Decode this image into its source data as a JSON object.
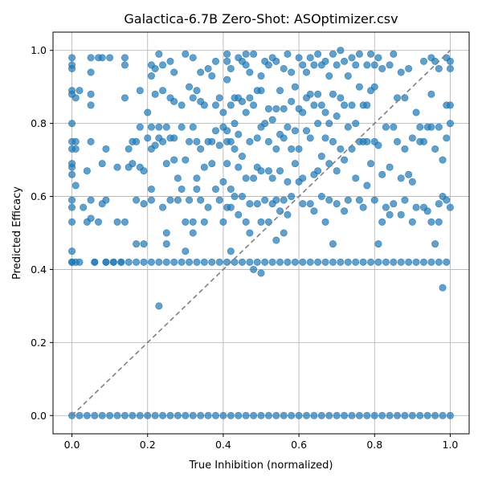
{
  "chart_data": {
    "type": "scatter",
    "title": "Galactica-6.7B Zero-Shot: ASOptimizer.csv",
    "xlabel": "True Inhibition (normalized)",
    "ylabel": "Predicted Efficacy",
    "xlim": [
      -0.05,
      1.05
    ],
    "ylim": [
      -0.05,
      1.05
    ],
    "xticks": [
      "0.0",
      "0.2",
      "0.4",
      "0.6",
      "0.8",
      "1.0"
    ],
    "yticks": [
      "0.0",
      "0.2",
      "0.4",
      "0.6",
      "0.8",
      "1.0"
    ],
    "grid": true,
    "legend": "none",
    "point_color": "#1f77b4",
    "point_alpha": 0.7,
    "reference_line": {
      "style": "dashed",
      "color": "#808080",
      "from": [
        0,
        0
      ],
      "to": [
        1,
        1
      ]
    },
    "points": [
      [
        0.0,
        0.98
      ],
      [
        0.0,
        0.96
      ],
      [
        0.0,
        0.95
      ],
      [
        0.0,
        0.89
      ],
      [
        0.0,
        0.88
      ],
      [
        0.0,
        0.8
      ],
      [
        0.0,
        0.75
      ],
      [
        0.0,
        0.73
      ],
      [
        0.0,
        0.69
      ],
      [
        0.0,
        0.68
      ],
      [
        0.0,
        0.66
      ],
      [
        0.0,
        0.59
      ],
      [
        0.0,
        0.57
      ],
      [
        0.0,
        0.53
      ],
      [
        0.0,
        0.45
      ],
      [
        0.0,
        0.42
      ],
      [
        0.01,
        0.87
      ],
      [
        0.01,
        0.75
      ],
      [
        0.01,
        0.73
      ],
      [
        0.01,
        0.63
      ],
      [
        0.02,
        0.89
      ],
      [
        0.02,
        0.42
      ],
      [
        0.03,
        0.57
      ],
      [
        0.04,
        0.67
      ],
      [
        0.04,
        0.53
      ],
      [
        0.05,
        0.98
      ],
      [
        0.05,
        0.94
      ],
      [
        0.05,
        0.88
      ],
      [
        0.05,
        0.85
      ],
      [
        0.05,
        0.75
      ],
      [
        0.05,
        0.59
      ],
      [
        0.05,
        0.54
      ],
      [
        0.06,
        0.42
      ],
      [
        0.07,
        0.98
      ],
      [
        0.07,
        0.53
      ],
      [
        0.08,
        0.98
      ],
      [
        0.08,
        0.69
      ],
      [
        0.08,
        0.58
      ],
      [
        0.09,
        0.73
      ],
      [
        0.09,
        0.59
      ],
      [
        0.09,
        0.42
      ],
      [
        0.1,
        0.98
      ],
      [
        0.11,
        0.42
      ],
      [
        0.12,
        0.68
      ],
      [
        0.12,
        0.53
      ],
      [
        0.13,
        0.42
      ],
      [
        0.14,
        0.53
      ],
      [
        0.14,
        0.98
      ],
      [
        0.14,
        0.96
      ],
      [
        0.14,
        0.87
      ],
      [
        0.15,
        0.73
      ],
      [
        0.15,
        0.68
      ],
      [
        0.16,
        0.75
      ],
      [
        0.16,
        0.69
      ],
      [
        0.17,
        0.75
      ],
      [
        0.17,
        0.59
      ],
      [
        0.17,
        0.47
      ],
      [
        0.18,
        0.89
      ],
      [
        0.18,
        0.79
      ],
      [
        0.18,
        0.68
      ],
      [
        0.19,
        0.67
      ],
      [
        0.19,
        0.58
      ],
      [
        0.19,
        0.47
      ],
      [
        0.2,
        0.83
      ],
      [
        0.2,
        0.76
      ],
      [
        0.21,
        0.96
      ],
      [
        0.21,
        0.93
      ],
      [
        0.21,
        0.79
      ],
      [
        0.21,
        0.73
      ],
      [
        0.21,
        0.62
      ],
      [
        0.21,
        0.59
      ],
      [
        0.22,
        0.95
      ],
      [
        0.22,
        0.88
      ],
      [
        0.22,
        0.74
      ],
      [
        0.23,
        0.99
      ],
      [
        0.23,
        0.79
      ],
      [
        0.23,
        0.76
      ],
      [
        0.23,
        0.3
      ],
      [
        0.24,
        0.96
      ],
      [
        0.24,
        0.89
      ],
      [
        0.24,
        0.75
      ],
      [
        0.24,
        0.57
      ],
      [
        0.25,
        0.79
      ],
      [
        0.25,
        0.69
      ],
      [
        0.25,
        0.5
      ],
      [
        0.25,
        0.47
      ],
      [
        0.26,
        0.97
      ],
      [
        0.26,
        0.87
      ],
      [
        0.26,
        0.76
      ],
      [
        0.26,
        0.59
      ],
      [
        0.27,
        0.94
      ],
      [
        0.27,
        0.86
      ],
      [
        0.27,
        0.76
      ],
      [
        0.27,
        0.7
      ],
      [
        0.28,
        0.65
      ],
      [
        0.28,
        0.59
      ],
      [
        0.29,
        0.85
      ],
      [
        0.29,
        0.79
      ],
      [
        0.29,
        0.62
      ],
      [
        0.3,
        0.99
      ],
      [
        0.3,
        0.7
      ],
      [
        0.3,
        0.53
      ],
      [
        0.3,
        0.45
      ],
      [
        0.31,
        0.9
      ],
      [
        0.31,
        0.75
      ],
      [
        0.31,
        0.59
      ],
      [
        0.32,
        0.98
      ],
      [
        0.32,
        0.87
      ],
      [
        0.32,
        0.79
      ],
      [
        0.32,
        0.53
      ],
      [
        0.32,
        0.5
      ],
      [
        0.33,
        0.89
      ],
      [
        0.33,
        0.75
      ],
      [
        0.33,
        0.65
      ],
      [
        0.33,
        0.62
      ],
      [
        0.34,
        0.94
      ],
      [
        0.34,
        0.86
      ],
      [
        0.34,
        0.73
      ],
      [
        0.34,
        0.59
      ],
      [
        0.35,
        0.85
      ],
      [
        0.35,
        0.68
      ],
      [
        0.35,
        0.53
      ],
      [
        0.36,
        0.95
      ],
      [
        0.36,
        0.75
      ],
      [
        0.36,
        0.57
      ],
      [
        0.37,
        0.93
      ],
      [
        0.37,
        0.75
      ],
      [
        0.37,
        0.69
      ],
      [
        0.38,
        0.97
      ],
      [
        0.38,
        0.85
      ],
      [
        0.38,
        0.78
      ],
      [
        0.38,
        0.62
      ],
      [
        0.39,
        0.87
      ],
      [
        0.39,
        0.74
      ],
      [
        0.39,
        0.59
      ],
      [
        0.4,
        0.83
      ],
      [
        0.4,
        0.79
      ],
      [
        0.4,
        0.64
      ],
      [
        0.4,
        0.53
      ],
      [
        0.41,
        0.99
      ],
      [
        0.41,
        0.97
      ],
      [
        0.41,
        0.92
      ],
      [
        0.41,
        0.78
      ],
      [
        0.41,
        0.75
      ],
      [
        0.41,
        0.69
      ],
      [
        0.41,
        0.57
      ],
      [
        0.42,
        0.95
      ],
      [
        0.42,
        0.85
      ],
      [
        0.42,
        0.75
      ],
      [
        0.42,
        0.62
      ],
      [
        0.42,
        0.57
      ],
      [
        0.42,
        0.45
      ],
      [
        0.43,
        0.87
      ],
      [
        0.43,
        0.8
      ],
      [
        0.43,
        0.73
      ],
      [
        0.43,
        0.6
      ],
      [
        0.44,
        0.98
      ],
      [
        0.44,
        0.87
      ],
      [
        0.44,
        0.77
      ],
      [
        0.44,
        0.68
      ],
      [
        0.44,
        0.55
      ],
      [
        0.45,
        0.97
      ],
      [
        0.45,
        0.86
      ],
      [
        0.45,
        0.71
      ],
      [
        0.45,
        0.6
      ],
      [
        0.46,
        0.99
      ],
      [
        0.46,
        0.96
      ],
      [
        0.46,
        0.83
      ],
      [
        0.46,
        0.65
      ],
      [
        0.46,
        0.53
      ],
      [
        0.47,
        0.94
      ],
      [
        0.47,
        0.87
      ],
      [
        0.47,
        0.75
      ],
      [
        0.47,
        0.58
      ],
      [
        0.47,
        0.5
      ],
      [
        0.48,
        0.99
      ],
      [
        0.48,
        0.85
      ],
      [
        0.48,
        0.65
      ],
      [
        0.48,
        0.4
      ],
      [
        0.49,
        0.89
      ],
      [
        0.49,
        0.76
      ],
      [
        0.49,
        0.68
      ],
      [
        0.49,
        0.58
      ],
      [
        0.5,
        0.93
      ],
      [
        0.5,
        0.89
      ],
      [
        0.5,
        0.79
      ],
      [
        0.5,
        0.67
      ],
      [
        0.5,
        0.53
      ],
      [
        0.5,
        0.39
      ],
      [
        0.51,
        0.97
      ],
      [
        0.51,
        0.8
      ],
      [
        0.51,
        0.59
      ],
      [
        0.52,
        0.96
      ],
      [
        0.52,
        0.84
      ],
      [
        0.52,
        0.75
      ],
      [
        0.52,
        0.67
      ],
      [
        0.52,
        0.53
      ],
      [
        0.53,
        0.98
      ],
      [
        0.53,
        0.81
      ],
      [
        0.53,
        0.65
      ],
      [
        0.53,
        0.58
      ],
      [
        0.54,
        0.97
      ],
      [
        0.54,
        0.84
      ],
      [
        0.54,
        0.73
      ],
      [
        0.54,
        0.59
      ],
      [
        0.54,
        0.48
      ],
      [
        0.55,
        0.89
      ],
      [
        0.55,
        0.77
      ],
      [
        0.55,
        0.67
      ],
      [
        0.55,
        0.56
      ],
      [
        0.56,
        0.95
      ],
      [
        0.56,
        0.84
      ],
      [
        0.56,
        0.76
      ],
      [
        0.56,
        0.59
      ],
      [
        0.56,
        0.5
      ],
      [
        0.57,
        0.99
      ],
      [
        0.57,
        0.79
      ],
      [
        0.57,
        0.64
      ],
      [
        0.57,
        0.55
      ],
      [
        0.58,
        0.94
      ],
      [
        0.58,
        0.86
      ],
      [
        0.58,
        0.73
      ],
      [
        0.58,
        0.6
      ],
      [
        0.59,
        0.9
      ],
      [
        0.59,
        0.78
      ],
      [
        0.59,
        0.69
      ],
      [
        0.6,
        0.98
      ],
      [
        0.6,
        0.84
      ],
      [
        0.6,
        0.73
      ],
      [
        0.6,
        0.64
      ],
      [
        0.61,
        0.96
      ],
      [
        0.61,
        0.83
      ],
      [
        0.61,
        0.65
      ],
      [
        0.61,
        0.58
      ],
      [
        0.62,
        0.94
      ],
      [
        0.62,
        0.87
      ],
      [
        0.62,
        0.78
      ],
      [
        0.63,
        0.98
      ],
      [
        0.63,
        0.88
      ],
      [
        0.63,
        0.76
      ],
      [
        0.63,
        0.58
      ],
      [
        0.64,
        0.96
      ],
      [
        0.64,
        0.85
      ],
      [
        0.64,
        0.66
      ],
      [
        0.64,
        0.56
      ],
      [
        0.65,
        0.99
      ],
      [
        0.65,
        0.88
      ],
      [
        0.65,
        0.8
      ],
      [
        0.65,
        0.67
      ],
      [
        0.66,
        0.96
      ],
      [
        0.66,
        0.85
      ],
      [
        0.66,
        0.71
      ],
      [
        0.66,
        0.6
      ],
      [
        0.67,
        0.97
      ],
      [
        0.67,
        0.83
      ],
      [
        0.67,
        0.76
      ],
      [
        0.67,
        0.53
      ],
      [
        0.68,
        0.93
      ],
      [
        0.68,
        0.8
      ],
      [
        0.68,
        0.69
      ],
      [
        0.68,
        0.59
      ],
      [
        0.69,
        0.99
      ],
      [
        0.69,
        0.88
      ],
      [
        0.69,
        0.75
      ],
      [
        0.69,
        0.47
      ],
      [
        0.7,
        0.96
      ],
      [
        0.7,
        0.82
      ],
      [
        0.7,
        0.67
      ],
      [
        0.7,
        0.58
      ],
      [
        0.71,
        1.0
      ],
      [
        0.71,
        0.87
      ],
      [
        0.71,
        0.73
      ],
      [
        0.72,
        0.97
      ],
      [
        0.72,
        0.85
      ],
      [
        0.72,
        0.7
      ],
      [
        0.72,
        0.56
      ],
      [
        0.73,
        0.93
      ],
      [
        0.73,
        0.79
      ],
      [
        0.73,
        0.59
      ],
      [
        0.74,
        0.98
      ],
      [
        0.74,
        0.85
      ],
      [
        0.74,
        0.73
      ],
      [
        0.75,
        0.96
      ],
      [
        0.75,
        0.8
      ],
      [
        0.75,
        0.65
      ],
      [
        0.76,
        0.99
      ],
      [
        0.76,
        0.9
      ],
      [
        0.76,
        0.75
      ],
      [
        0.76,
        0.59
      ],
      [
        0.77,
        0.85
      ],
      [
        0.77,
        0.75
      ],
      [
        0.77,
        0.57
      ],
      [
        0.78,
        0.96
      ],
      [
        0.78,
        0.85
      ],
      [
        0.78,
        0.75
      ],
      [
        0.78,
        0.63
      ],
      [
        0.79,
        0.99
      ],
      [
        0.79,
        0.89
      ],
      [
        0.79,
        0.69
      ],
      [
        0.8,
        0.96
      ],
      [
        0.8,
        0.9
      ],
      [
        0.8,
        0.75
      ],
      [
        0.8,
        0.59
      ],
      [
        0.81,
        0.98
      ],
      [
        0.81,
        0.74
      ],
      [
        0.81,
        0.47
      ],
      [
        0.82,
        0.95
      ],
      [
        0.82,
        0.66
      ],
      [
        0.82,
        0.53
      ],
      [
        0.83,
        0.79
      ],
      [
        0.83,
        0.57
      ],
      [
        0.84,
        0.96
      ],
      [
        0.84,
        0.68
      ],
      [
        0.84,
        0.55
      ],
      [
        0.85,
        0.99
      ],
      [
        0.85,
        0.79
      ],
      [
        0.85,
        0.58
      ],
      [
        0.86,
        0.87
      ],
      [
        0.86,
        0.75
      ],
      [
        0.87,
        0.94
      ],
      [
        0.87,
        0.65
      ],
      [
        0.87,
        0.55
      ],
      [
        0.88,
        0.87
      ],
      [
        0.88,
        0.73
      ],
      [
        0.88,
        0.59
      ],
      [
        0.89,
        0.95
      ],
      [
        0.89,
        0.66
      ],
      [
        0.9,
        0.76
      ],
      [
        0.9,
        0.64
      ],
      [
        0.9,
        0.53
      ],
      [
        0.91,
        0.83
      ],
      [
        0.91,
        0.57
      ],
      [
        0.92,
        0.79
      ],
      [
        0.92,
        0.75
      ],
      [
        0.93,
        0.97
      ],
      [
        0.93,
        0.75
      ],
      [
        0.93,
        0.57
      ],
      [
        0.94,
        0.79
      ],
      [
        0.94,
        0.56
      ],
      [
        0.95,
        0.98
      ],
      [
        0.95,
        0.88
      ],
      [
        0.95,
        0.79
      ],
      [
        0.95,
        0.53
      ],
      [
        0.96,
        0.97
      ],
      [
        0.96,
        0.73
      ],
      [
        0.96,
        0.47
      ],
      [
        0.97,
        0.95
      ],
      [
        0.97,
        0.79
      ],
      [
        0.97,
        0.58
      ],
      [
        0.97,
        0.53
      ],
      [
        0.98,
        0.7
      ],
      [
        0.98,
        0.6
      ],
      [
        0.98,
        0.35
      ],
      [
        0.99,
        0.98
      ],
      [
        0.99,
        0.85
      ],
      [
        0.99,
        0.76
      ],
      [
        0.99,
        0.59
      ],
      [
        1.0,
        0.97
      ],
      [
        1.0,
        0.95
      ],
      [
        1.0,
        0.85
      ],
      [
        1.0,
        0.8
      ],
      [
        1.0,
        0.57
      ]
    ],
    "band_042_x": [
      0.0,
      0.01,
      0.06,
      0.09,
      0.11,
      0.13,
      0.15,
      0.17,
      0.19,
      0.21,
      0.23,
      0.25,
      0.27,
      0.29,
      0.31,
      0.33,
      0.35,
      0.37,
      0.39,
      0.41,
      0.43,
      0.45,
      0.47,
      0.49,
      0.51,
      0.53,
      0.55,
      0.57,
      0.59,
      0.61,
      0.63,
      0.65,
      0.67,
      0.69,
      0.71,
      0.73,
      0.75,
      0.77,
      0.79,
      0.81,
      0.83,
      0.85,
      0.87,
      0.89,
      0.91,
      0.93,
      0.95,
      0.97,
      0.99
    ],
    "band_000_x": [
      0.0,
      0.02,
      0.04,
      0.06,
      0.08,
      0.1,
      0.12,
      0.14,
      0.16,
      0.18,
      0.2,
      0.22,
      0.24,
      0.26,
      0.28,
      0.3,
      0.32,
      0.34,
      0.36,
      0.38,
      0.4,
      0.42,
      0.44,
      0.46,
      0.48,
      0.5,
      0.52,
      0.54,
      0.56,
      0.58,
      0.6,
      0.62,
      0.64,
      0.66,
      0.68,
      0.7,
      0.72,
      0.74,
      0.76,
      0.78,
      0.8,
      0.82,
      0.84,
      0.86,
      0.88,
      0.9,
      0.92,
      0.94,
      0.96,
      0.98,
      1.0
    ]
  }
}
